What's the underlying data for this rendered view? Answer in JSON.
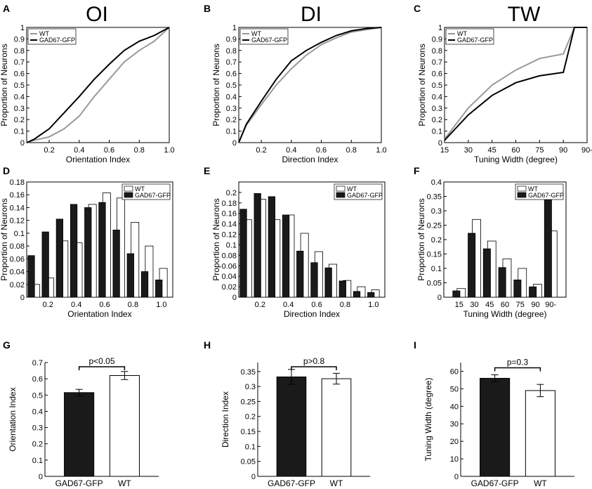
{
  "figure": {
    "column_titles": [
      "OI",
      "DI",
      "TW"
    ],
    "panel_letters": [
      "A",
      "B",
      "C",
      "D",
      "E",
      "F",
      "G",
      "H",
      "I"
    ]
  },
  "chart_data": [
    {
      "panel": "A",
      "type": "line",
      "xlabel": "Orientation Index",
      "ylabel": "Proportion of Neurons",
      "xlim": [
        0.05,
        1.0
      ],
      "ylim": [
        0,
        1
      ],
      "xticks": [
        0.2,
        0.4,
        0.6,
        0.8,
        1.0
      ],
      "xtick_labels": [
        "0.2",
        "0.4",
        "0.6",
        "0.8",
        "1.0"
      ],
      "yticks": [
        0,
        0.1,
        0.2,
        0.3,
        0.4,
        0.5,
        0.6,
        0.7,
        0.8,
        0.9,
        1
      ],
      "ytick_labels": [
        "0",
        "0.1",
        "0.2",
        "0.3",
        "0.4",
        "0.5",
        "0.6",
        "0.7",
        "0.8",
        "0.9",
        "1"
      ],
      "legend": [
        "WT",
        "GAD67-GFP"
      ],
      "series": [
        {
          "name": "WT",
          "color": "#999999",
          "x": [
            0.05,
            0.1,
            0.2,
            0.3,
            0.4,
            0.5,
            0.6,
            0.7,
            0.8,
            0.9,
            1.0
          ],
          "y": [
            0,
            0.02,
            0.05,
            0.12,
            0.23,
            0.4,
            0.55,
            0.7,
            0.8,
            0.88,
            1.0
          ]
        },
        {
          "name": "GAD67-GFP",
          "color": "#000000",
          "x": [
            0.05,
            0.1,
            0.2,
            0.3,
            0.4,
            0.5,
            0.6,
            0.7,
            0.8,
            0.9,
            1.0
          ],
          "y": [
            0,
            0.03,
            0.12,
            0.26,
            0.4,
            0.55,
            0.68,
            0.8,
            0.88,
            0.93,
            1.0
          ]
        }
      ]
    },
    {
      "panel": "B",
      "type": "line",
      "xlabel": "Direction Index",
      "ylabel": "Proportion of Neurons",
      "xlim": [
        0.05,
        1.0
      ],
      "ylim": [
        0,
        1
      ],
      "xticks": [
        0.2,
        0.4,
        0.6,
        0.8,
        1.0
      ],
      "xtick_labels": [
        "0.2",
        "0.4",
        "0.6",
        "0.8",
        "1.0"
      ],
      "yticks": [
        0,
        0.1,
        0.2,
        0.3,
        0.4,
        0.5,
        0.6,
        0.7,
        0.8,
        0.9,
        1
      ],
      "ytick_labels": [
        "0",
        "0.1",
        "0.2",
        "0.3",
        "0.4",
        "0.5",
        "0.6",
        "0.7",
        "0.8",
        "0.9",
        "1"
      ],
      "legend": [
        "WT",
        "GAD67-GFP"
      ],
      "series": [
        {
          "name": "WT",
          "color": "#999999",
          "x": [
            0.05,
            0.1,
            0.2,
            0.3,
            0.4,
            0.5,
            0.6,
            0.7,
            0.8,
            0.9,
            1.0
          ],
          "y": [
            0,
            0.15,
            0.33,
            0.5,
            0.64,
            0.76,
            0.85,
            0.91,
            0.96,
            0.98,
            1.0
          ]
        },
        {
          "name": "GAD67-GFP",
          "color": "#000000",
          "x": [
            0.05,
            0.1,
            0.2,
            0.3,
            0.4,
            0.5,
            0.6,
            0.7,
            0.8,
            0.9,
            1.0
          ],
          "y": [
            0,
            0.16,
            0.36,
            0.55,
            0.71,
            0.8,
            0.87,
            0.93,
            0.97,
            0.99,
            1.0
          ]
        }
      ]
    },
    {
      "panel": "C",
      "type": "line",
      "xlabel": "Tuning Width (degree)",
      "ylabel": "Proportion of Neurons",
      "xlim": [
        15,
        105
      ],
      "ylim": [
        0,
        1
      ],
      "xticks": [
        15,
        30,
        45,
        60,
        75,
        90,
        105
      ],
      "xtick_labels": [
        "15",
        "30",
        "45",
        "60",
        "75",
        "90",
        "90-"
      ],
      "yticks": [
        0,
        0.1,
        0.2,
        0.3,
        0.4,
        0.5,
        0.6,
        0.7,
        0.8,
        0.9,
        1
      ],
      "ytick_labels": [
        "0",
        "0.1",
        "0.2",
        "0.3",
        "0.4",
        "0.5",
        "0.6",
        "0.7",
        "0.8",
        "0.9",
        "1"
      ],
      "legend": [
        "WT",
        "GAD67-GFP"
      ],
      "series": [
        {
          "name": "WT",
          "color": "#999999",
          "x": [
            15,
            30,
            45,
            60,
            75,
            90,
            97,
            105
          ],
          "y": [
            0.03,
            0.3,
            0.5,
            0.63,
            0.73,
            0.77,
            1.0,
            1.0
          ]
        },
        {
          "name": "GAD67-GFP",
          "color": "#000000",
          "x": [
            15,
            30,
            45,
            60,
            75,
            90,
            97,
            105
          ],
          "y": [
            0.02,
            0.24,
            0.41,
            0.52,
            0.58,
            0.61,
            1.0,
            1.0
          ]
        }
      ]
    },
    {
      "panel": "D",
      "type": "bar",
      "xlabel": "Orientation Index",
      "ylabel": "Proportion of Neurons",
      "xlim": [
        0.05,
        1.08
      ],
      "ylim": [
        0,
        0.18
      ],
      "xticks": [
        0.2,
        0.4,
        0.6,
        0.8,
        1.0
      ],
      "xtick_labels": [
        "0.2",
        "0.4",
        "0.6",
        "0.8",
        "1.0"
      ],
      "yticks": [
        0,
        0.02,
        0.04,
        0.06,
        0.08,
        0.1,
        0.12,
        0.14,
        0.16,
        0.18
      ],
      "ytick_labels": [
        "0",
        "0.02",
        "0.04",
        "0.06",
        "0.08",
        "0.1",
        "0.12",
        "0.14",
        "0.16",
        "0.18"
      ],
      "legend": [
        "WT",
        "GAD67-GFP"
      ],
      "bin_centers": [
        0.1,
        0.2,
        0.3,
        0.4,
        0.5,
        0.6,
        0.7,
        0.8,
        0.9,
        1.0
      ],
      "series": [
        {
          "name": "WT",
          "color": "#ffffff",
          "values": [
            0.02,
            0.03,
            0.088,
            0.085,
            0.145,
            0.163,
            0.155,
            0.117,
            0.08,
            0.045
          ]
        },
        {
          "name": "GAD67-GFP",
          "color": "#1a1a1a",
          "values": [
            0.065,
            0.102,
            0.122,
            0.145,
            0.14,
            0.148,
            0.105,
            0.068,
            0.04,
            0.027
          ]
        }
      ]
    },
    {
      "panel": "E",
      "type": "bar",
      "xlabel": "Direction Index",
      "ylabel": "Proportion of Neurons",
      "xlim": [
        0.05,
        1.08
      ],
      "ylim": [
        0,
        0.22
      ],
      "xticks": [
        0.2,
        0.4,
        0.6,
        0.8,
        1.0
      ],
      "xtick_labels": [
        "0.2",
        "0.4",
        "0.6",
        "0.8",
        "1.0"
      ],
      "yticks": [
        0,
        0.02,
        0.04,
        0.06,
        0.08,
        0.1,
        0.12,
        0.14,
        0.16,
        0.18,
        0.2
      ],
      "ytick_labels": [
        "0",
        "0.02",
        "0.04",
        "0.06",
        "0.08",
        "0.1",
        "0.12",
        "0.14",
        "0.16",
        "0.18",
        "0.2"
      ],
      "legend": [
        "WT",
        "GAD67-GFP"
      ],
      "bin_centers": [
        0.1,
        0.2,
        0.3,
        0.4,
        0.5,
        0.6,
        0.7,
        0.8,
        0.9,
        1.0
      ],
      "series": [
        {
          "name": "WT",
          "color": "#ffffff",
          "values": [
            0.148,
            0.187,
            0.148,
            0.157,
            0.122,
            0.087,
            0.063,
            0.032,
            0.02,
            0.014
          ]
        },
        {
          "name": "GAD67-GFP",
          "color": "#1a1a1a",
          "values": [
            0.168,
            0.198,
            0.192,
            0.157,
            0.088,
            0.066,
            0.056,
            0.031,
            0.011,
            0.009
          ]
        }
      ]
    },
    {
      "panel": "F",
      "type": "bar",
      "xlabel": "Tuning Width (degree)",
      "ylabel": "Proportion of Neurons",
      "xlim": [
        0,
        8
      ],
      "ylim": [
        0,
        0.4
      ],
      "xticks": [
        1,
        2,
        3,
        4,
        5,
        6,
        7
      ],
      "xtick_labels": [
        "15",
        "30",
        "45",
        "60",
        "75",
        "90",
        "90-"
      ],
      "yticks": [
        0,
        0.05,
        0.1,
        0.15,
        0.2,
        0.25,
        0.3,
        0.35,
        0.4
      ],
      "ytick_labels": [
        "0",
        "0.05",
        "0.1",
        "0.15",
        "0.2",
        "0.25",
        "0.3",
        "0.35",
        "0.4"
      ],
      "legend": [
        "WT",
        "GAD67-GFP"
      ],
      "bin_centers": [
        1,
        2,
        3,
        4,
        5,
        6,
        7
      ],
      "series": [
        {
          "name": "WT",
          "color": "#ffffff",
          "values": [
            0.03,
            0.27,
            0.195,
            0.133,
            0.1,
            0.045,
            0.23
          ]
        },
        {
          "name": "GAD67-GFP",
          "color": "#1a1a1a",
          "values": [
            0.022,
            0.222,
            0.168,
            0.103,
            0.06,
            0.036,
            0.39
          ]
        }
      ]
    },
    {
      "panel": "G",
      "type": "bar",
      "categories": [
        "GAD67-GFP",
        "WT"
      ],
      "values": [
        0.515,
        0.62
      ],
      "errors": [
        0.02,
        0.025
      ],
      "colors": [
        "#1a1a1a",
        "#ffffff"
      ],
      "ylabel": "Orientation Index",
      "xlabel": "",
      "ylim": [
        0,
        0.7
      ],
      "yticks": [
        0,
        0.1,
        0.2,
        0.3,
        0.4,
        0.5,
        0.6,
        0.7
      ],
      "ytick_labels": [
        "0",
        "0.1",
        "0.2",
        "0.3",
        "0.4",
        "0.5",
        "0.6",
        "0.7"
      ],
      "annotation": "p<0.05"
    },
    {
      "panel": "H",
      "type": "bar",
      "categories": [
        "GAD67-GFP",
        "WT"
      ],
      "values": [
        0.332,
        0.326
      ],
      "errors": [
        0.025,
        0.018
      ],
      "colors": [
        "#1a1a1a",
        "#ffffff"
      ],
      "ylabel": "Direction Index",
      "xlabel": "",
      "ylim": [
        0,
        0.38
      ],
      "yticks": [
        0,
        0.05,
        0.1,
        0.15,
        0.2,
        0.25,
        0.3,
        0.35
      ],
      "ytick_labels": [
        "0",
        "0.05",
        "0.1",
        "0.15",
        "0.2",
        "0.25",
        "0.3",
        "0.35"
      ],
      "annotation": "p>0.8"
    },
    {
      "panel": "I",
      "type": "bar",
      "categories": [
        "GAD67-GFP",
        "WT"
      ],
      "values": [
        56,
        49
      ],
      "errors": [
        2,
        3.5
      ],
      "colors": [
        "#1a1a1a",
        "#ffffff"
      ],
      "ylabel": "Tuning Width (degree)",
      "xlabel": "",
      "ylim": [
        0,
        65
      ],
      "yticks": [
        0,
        10,
        20,
        30,
        40,
        50,
        60
      ],
      "ytick_labels": [
        "0",
        "10",
        "20",
        "30",
        "40",
        "50",
        "60"
      ],
      "annotation": "p=0.3"
    }
  ]
}
